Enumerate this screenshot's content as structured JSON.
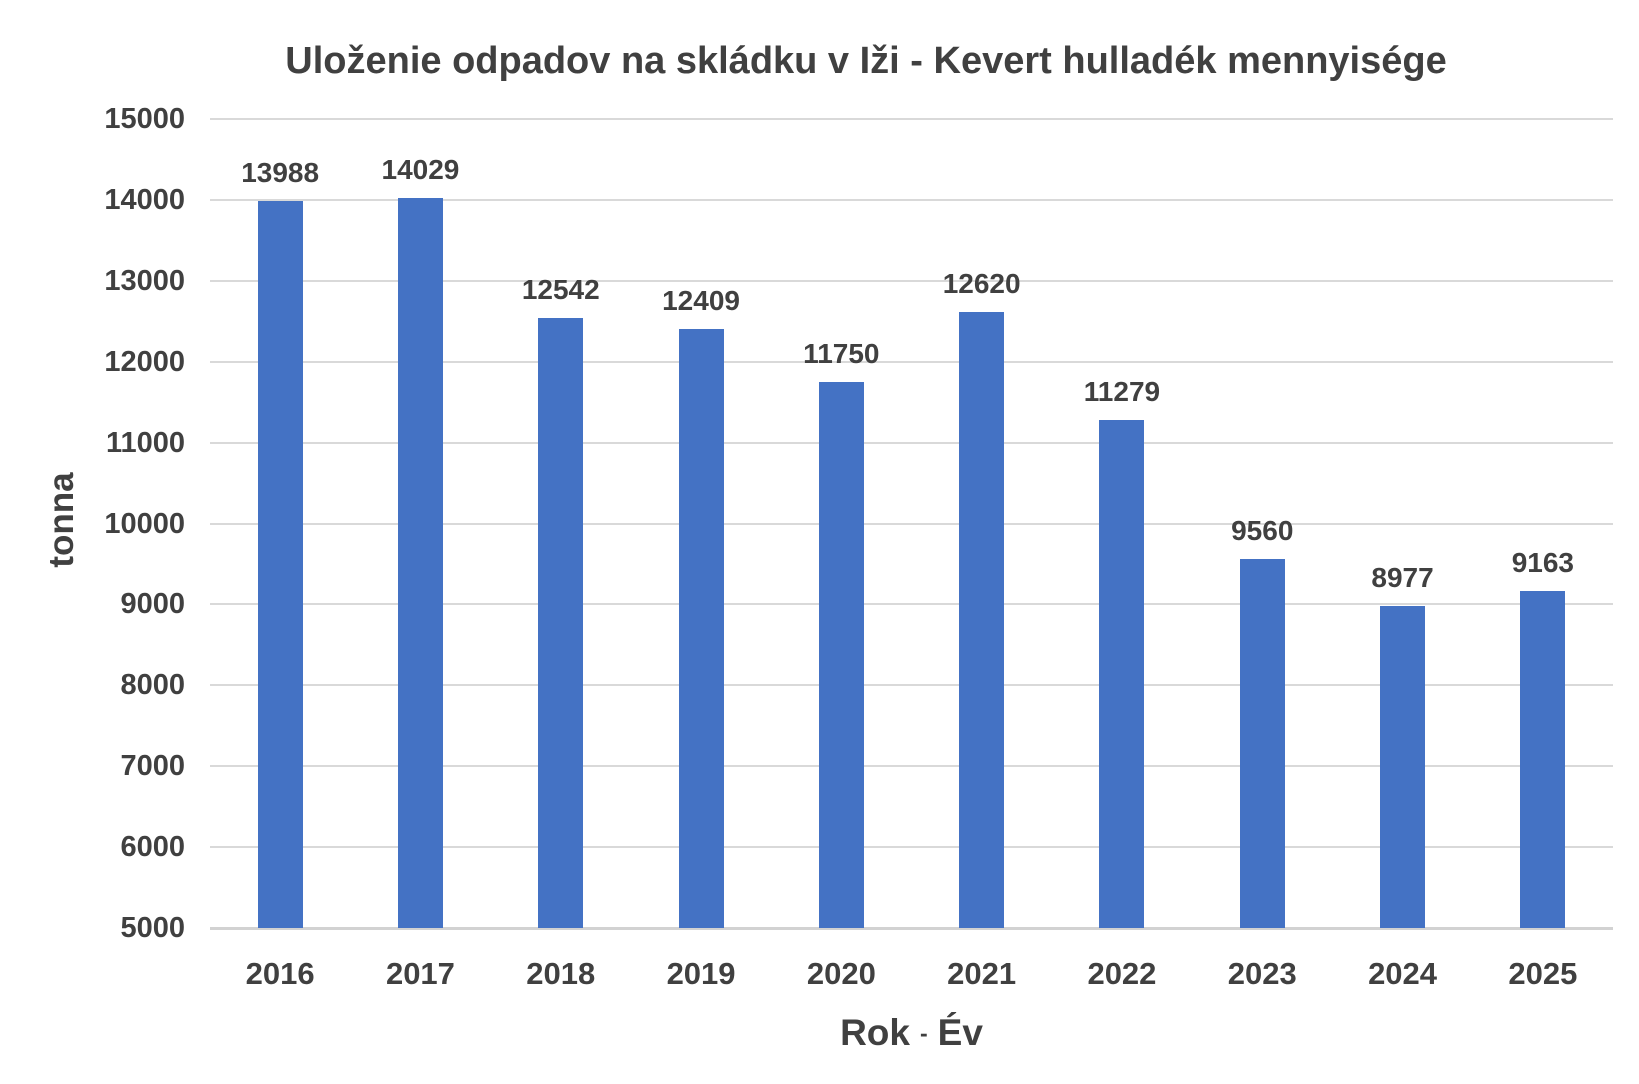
{
  "chart_data": {
    "type": "bar",
    "title": "Uloženie odpadov na skládku v Iži - Kevert hulladék mennyisége",
    "categories": [
      "2016",
      "2017",
      "2018",
      "2019",
      "2020",
      "2021",
      "2022",
      "2023",
      "2024",
      "2025"
    ],
    "values": [
      13988,
      14029,
      12542,
      12409,
      11750,
      12620,
      11279,
      9560,
      8977,
      9163
    ],
    "xlabel": "Rok - Év",
    "ylabel": "tonna",
    "ylim": [
      5000,
      15000
    ],
    "yticks": [
      5000,
      6000,
      7000,
      8000,
      9000,
      10000,
      11000,
      12000,
      13000,
      14000,
      15000
    ],
    "grid": true,
    "legend": false,
    "data_labels": true,
    "bar_color": "#4472C4",
    "text_color": "#404040",
    "gridline_color": "#D9D9D9"
  },
  "xlabel_parts": {
    "main": "Rok",
    "sep": "-",
    "sub": "Év"
  }
}
